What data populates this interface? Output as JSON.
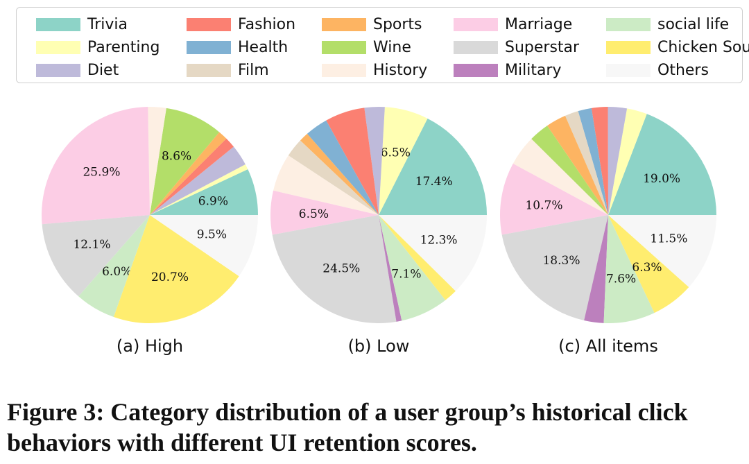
{
  "legend": [
    {
      "label": "Trivia",
      "color": "#8dd3c7"
    },
    {
      "label": "Fashion",
      "color": "#fb8072"
    },
    {
      "label": "Sports",
      "color": "#fdb462"
    },
    {
      "label": "Marriage",
      "color": "#fccde5"
    },
    {
      "label": "social life",
      "color": "#ccebc5"
    },
    {
      "label": "Parenting",
      "color": "#ffffb3"
    },
    {
      "label": "Health",
      "color": "#80b1d3"
    },
    {
      "label": "Wine",
      "color": "#b3de69"
    },
    {
      "label": "Superstar",
      "color": "#d9d9d9"
    },
    {
      "label": "Chicken Soul",
      "color": "#ffed6f"
    },
    {
      "label": "Diet",
      "color": "#bebada"
    },
    {
      "label": "Film",
      "color": "#e5d8c4"
    },
    {
      "label": "History",
      "color": "#fdefe3"
    },
    {
      "label": "Military",
      "color": "#bc80bd"
    },
    {
      "label": "Others",
      "color": "#f7f7f7"
    }
  ],
  "chart_data": [
    {
      "type": "pie",
      "subtitle": "(a) High",
      "slices": [
        {
          "category": "Trivia",
          "value": 6.9,
          "label": "6.9%"
        },
        {
          "category": "Parenting",
          "value": 0.8,
          "label": ""
        },
        {
          "category": "Diet",
          "value": 3.1,
          "label": ""
        },
        {
          "category": "Fashion",
          "value": 1.6,
          "label": ""
        },
        {
          "category": "Health",
          "value": 0.0,
          "label": ""
        },
        {
          "category": "Sports",
          "value": 1.4,
          "label": ""
        },
        {
          "category": "Wine",
          "value": 8.6,
          "label": "8.6%"
        },
        {
          "category": "Film",
          "value": 0.0,
          "label": ""
        },
        {
          "category": "History",
          "value": 2.7,
          "label": ""
        },
        {
          "category": "Marriage",
          "value": 25.9,
          "label": "25.9%"
        },
        {
          "category": "Superstar",
          "value": 12.1,
          "label": "12.1%"
        },
        {
          "category": "Military",
          "value": 0.0,
          "label": ""
        },
        {
          "category": "social life",
          "value": 6.0,
          "label": "6.0%"
        },
        {
          "category": "Chicken Soul",
          "value": 20.7,
          "label": "20.7%"
        },
        {
          "category": "Others",
          "value": 9.5,
          "label": "9.5%"
        }
      ]
    },
    {
      "type": "pie",
      "subtitle": "(b) Low",
      "slices": [
        {
          "category": "Trivia",
          "value": 17.4,
          "label": "17.4%"
        },
        {
          "category": "Parenting",
          "value": 6.5,
          "label": "6.5%"
        },
        {
          "category": "Diet",
          "value": 3.0,
          "label": ""
        },
        {
          "category": "Fashion",
          "value": 5.9,
          "label": ""
        },
        {
          "category": "Health",
          "value": 3.4,
          "label": ""
        },
        {
          "category": "Sports",
          "value": 1.4,
          "label": ""
        },
        {
          "category": "Wine",
          "value": 0.0,
          "label": ""
        },
        {
          "category": "Film",
          "value": 2.8,
          "label": ""
        },
        {
          "category": "History",
          "value": 5.6,
          "label": ""
        },
        {
          "category": "Marriage",
          "value": 6.5,
          "label": "6.5%"
        },
        {
          "category": "Superstar",
          "value": 24.5,
          "label": "24.5%"
        },
        {
          "category": "Military",
          "value": 0.8,
          "label": ""
        },
        {
          "category": "social life",
          "value": 7.1,
          "label": "7.1%"
        },
        {
          "category": "Chicken Soul",
          "value": 2.0,
          "label": ""
        },
        {
          "category": "Others",
          "value": 12.3,
          "label": "12.3%"
        }
      ]
    },
    {
      "type": "pie",
      "subtitle": "(c) All items",
      "slices": [
        {
          "category": "Trivia",
          "value": 19.0,
          "label": "19.0%"
        },
        {
          "category": "Parenting",
          "value": 3.0,
          "label": ""
        },
        {
          "category": "Diet",
          "value": 2.8,
          "label": ""
        },
        {
          "category": "Fashion",
          "value": 2.4,
          "label": ""
        },
        {
          "category": "Health",
          "value": 2.0,
          "label": ""
        },
        {
          "category": "Film",
          "value": 2.0,
          "label": ""
        },
        {
          "category": "Sports",
          "value": 3.0,
          "label": ""
        },
        {
          "category": "Wine",
          "value": 3.0,
          "label": ""
        },
        {
          "category": "History",
          "value": 4.5,
          "label": ""
        },
        {
          "category": "Marriage",
          "value": 10.7,
          "label": "10.7%"
        },
        {
          "category": "Superstar",
          "value": 18.3,
          "label": "18.3%"
        },
        {
          "category": "Military",
          "value": 2.9,
          "label": ""
        },
        {
          "category": "social life",
          "value": 7.6,
          "label": "7.6%"
        },
        {
          "category": "Chicken Soul",
          "value": 6.3,
          "label": "6.3%"
        },
        {
          "category": "Others",
          "value": 11.5,
          "label": "11.5%"
        }
      ]
    }
  ],
  "caption": "Figure 3: Category distribution of a user group’s historical click behaviors with different UI retention scores."
}
